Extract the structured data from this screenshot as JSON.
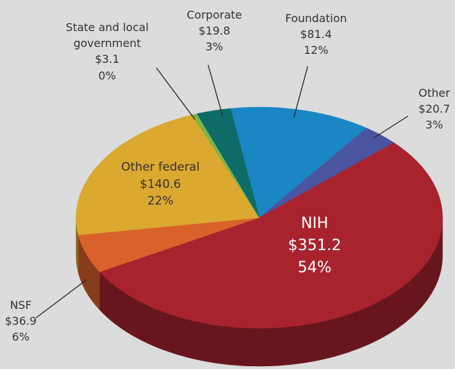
{
  "chart_data": {
    "type": "pie3d",
    "categories": [
      "Foundation",
      "Other",
      "NIH",
      "NSF",
      "Other federal",
      "State and local government",
      "Corporate"
    ],
    "values": [
      81.4,
      20.7,
      351.2,
      36.9,
      140.6,
      3.1,
      19.8
    ],
    "value_labels": [
      "$81.4",
      "$20.7",
      "$351.2",
      "$36.9",
      "$140.6",
      "$3.1",
      "$19.8"
    ],
    "percent_labels": [
      "12%",
      "3%",
      "54%",
      "6%",
      "22%",
      "0%",
      "3%"
    ],
    "colors": [
      "#1a87c4",
      "#4a55a0",
      "#a8232e",
      "#d9622b",
      "#dba830",
      "#7ab648",
      "#0e6b68"
    ]
  }
}
